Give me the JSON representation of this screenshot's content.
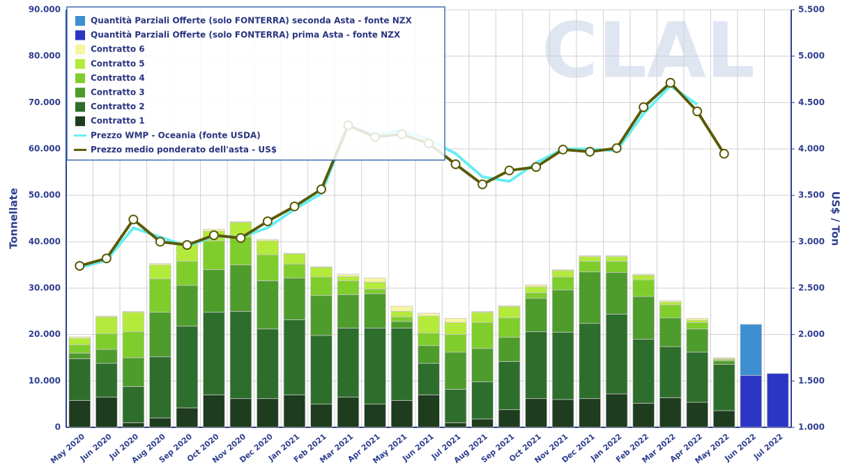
{
  "chart_data": {
    "type": "bar",
    "watermark": "CLAL",
    "y_label": "Tonnellate",
    "y2_label": "US$ / Ton",
    "categories": [
      "May 2020",
      "Jun 2020",
      "Jul 2020",
      "Aug 2020",
      "Sep 2020",
      "Oct 2020",
      "Nov 2020",
      "Dec 2020",
      "Jan 2021",
      "Feb 2021",
      "Mar 2021",
      "Apr 2021",
      "May 2021",
      "Jun 2021",
      "Jul 2021",
      "Aug 2021",
      "Sep 2021",
      "Oct 2021",
      "Nov 2021",
      "Dec 2021",
      "Jan 2022",
      "Feb 2022",
      "Mar 2022",
      "Apr 2022",
      "May 2022",
      "Jun 2022",
      "Jul 2022"
    ],
    "ylim": [
      0,
      90000
    ],
    "yticks": [
      0,
      {
        "value": 10000,
        "label": "10.000"
      },
      {
        "value": 20000,
        "label": "20.000"
      },
      {
        "value": 30000,
        "label": "30.000"
      },
      {
        "value": 40000,
        "label": "40.000"
      },
      {
        "value": 50000,
        "label": "50.000"
      },
      {
        "value": 60000,
        "label": "60.000"
      },
      {
        "value": 70000,
        "label": "70.000"
      },
      {
        "value": 80000,
        "label": "80.000"
      },
      {
        "value": 90000,
        "label": "90.000"
      }
    ],
    "y2lim": [
      1000,
      5500
    ],
    "y2ticks": [
      {
        "value": 1000,
        "label": "1.000"
      },
      {
        "value": 1500,
        "label": "1.500"
      },
      {
        "value": 2000,
        "label": "2.000"
      },
      {
        "value": 2500,
        "label": "2.500"
      },
      {
        "value": 3000,
        "label": "3.000"
      },
      {
        "value": 3500,
        "label": "3.500"
      },
      {
        "value": 4000,
        "label": "4.000"
      },
      {
        "value": 4500,
        "label": "4.500"
      },
      {
        "value": 5000,
        "label": "5.000"
      },
      {
        "value": 5500,
        "label": "5.500"
      }
    ],
    "grid": true,
    "legend": "top-left",
    "series": [
      {
        "name": "Quantità Parziali Offerte (solo FONTERRA) seconda Asta - fonte NZX",
        "type": "bar",
        "color": "#3d8fd2",
        "values": [
          null,
          null,
          null,
          null,
          null,
          null,
          null,
          null,
          null,
          null,
          null,
          null,
          null,
          null,
          null,
          null,
          null,
          null,
          null,
          null,
          null,
          null,
          null,
          null,
          null,
          11000,
          null
        ]
      },
      {
        "name": "Quantità Parziali Offerte (solo FONTERRA) prima Asta - fonte NZX",
        "type": "bar",
        "color": "#2b36c4",
        "values": [
          null,
          null,
          null,
          null,
          null,
          null,
          null,
          null,
          null,
          null,
          null,
          null,
          null,
          null,
          null,
          null,
          null,
          null,
          null,
          null,
          null,
          null,
          null,
          null,
          null,
          11200,
          11600
        ]
      },
      {
        "name": "Contratto 6",
        "type": "bar",
        "color": "#f6f6a0",
        "values": [
          300,
          200,
          200,
          300,
          500,
          400,
          100,
          300,
          100,
          100,
          500,
          900,
          1100,
          600,
          900,
          200,
          200,
          400,
          200,
          200,
          200,
          200,
          300,
          400,
          200,
          null,
          null
        ]
      },
      {
        "name": "Contratto 5",
        "type": "bar",
        "color": "#b4ea3c",
        "values": [
          1400,
          3600,
          4200,
          3000,
          3700,
          2100,
          3200,
          3000,
          2200,
          2100,
          900,
          1500,
          1200,
          3700,
          2600,
          2200,
          2400,
          1300,
          1400,
          1000,
          1000,
          1000,
          600,
          500,
          200,
          null,
          null
        ]
      },
      {
        "name": "Contratto 4",
        "type": "bar",
        "color": "#7fcd2c",
        "values": [
          1800,
          3400,
          5600,
          7200,
          5200,
          6200,
          6000,
          5600,
          3000,
          4000,
          3000,
          1000,
          1000,
          2700,
          3800,
          5600,
          4200,
          1200,
          2800,
          2300,
          2400,
          3600,
          2800,
          1400,
          300,
          null,
          null
        ]
      },
      {
        "name": "Contratto 3",
        "type": "bar",
        "color": "#4e9c2c",
        "values": [
          1200,
          3000,
          6200,
          9600,
          8800,
          9200,
          10000,
          10400,
          9000,
          8600,
          7200,
          7400,
          1400,
          3800,
          8000,
          7200,
          5200,
          7200,
          9100,
          11100,
          9000,
          9200,
          6200,
          5000,
          700,
          null,
          null
        ]
      },
      {
        "name": "Contratto 2",
        "type": "bar",
        "color": "#2e6e2c",
        "values": [
          9000,
          7300,
          7800,
          13200,
          17600,
          17800,
          18800,
          15000,
          16200,
          14800,
          14900,
          16400,
          15600,
          6800,
          7200,
          8000,
          10400,
          14400,
          14500,
          16200,
          17200,
          13800,
          11000,
          10800,
          10000,
          null,
          null
        ]
      },
      {
        "name": "Contratto 1",
        "type": "bar",
        "color": "#1e3c1e",
        "values": [
          5800,
          6500,
          1000,
          2000,
          4200,
          7000,
          6200,
          6200,
          7000,
          5000,
          6500,
          5000,
          5800,
          7000,
          1000,
          1800,
          3800,
          6200,
          6000,
          6200,
          7200,
          5200,
          6400,
          5400,
          3600,
          null,
          null
        ]
      },
      {
        "name": "Prezzo WMP - Oceania (fonte USDA)",
        "type": "line",
        "axis": "y2",
        "color": "#66eef2",
        "values": [
          2720,
          2800,
          3150,
          3050,
          2950,
          3060,
          3050,
          3150,
          3350,
          3520,
          4250,
          4150,
          4200,
          4100,
          3950,
          3700,
          3650,
          3850,
          4000,
          4000,
          3980,
          4380,
          4680,
          4480,
          null,
          null,
          null
        ]
      },
      {
        "name": "Prezzo medio ponderato dell'asta - US$",
        "type": "line",
        "axis": "y2",
        "color": "#5a5a08",
        "markers": true,
        "values": [
          2740,
          2820,
          3240,
          3000,
          2965,
          3070,
          3040,
          3220,
          3380,
          3565,
          4255,
          4128,
          4158,
          4060,
          3835,
          3618,
          3768,
          3805,
          3993,
          3970,
          4008,
          4450,
          4713,
          4405,
          3948,
          null,
          null
        ]
      }
    ]
  }
}
